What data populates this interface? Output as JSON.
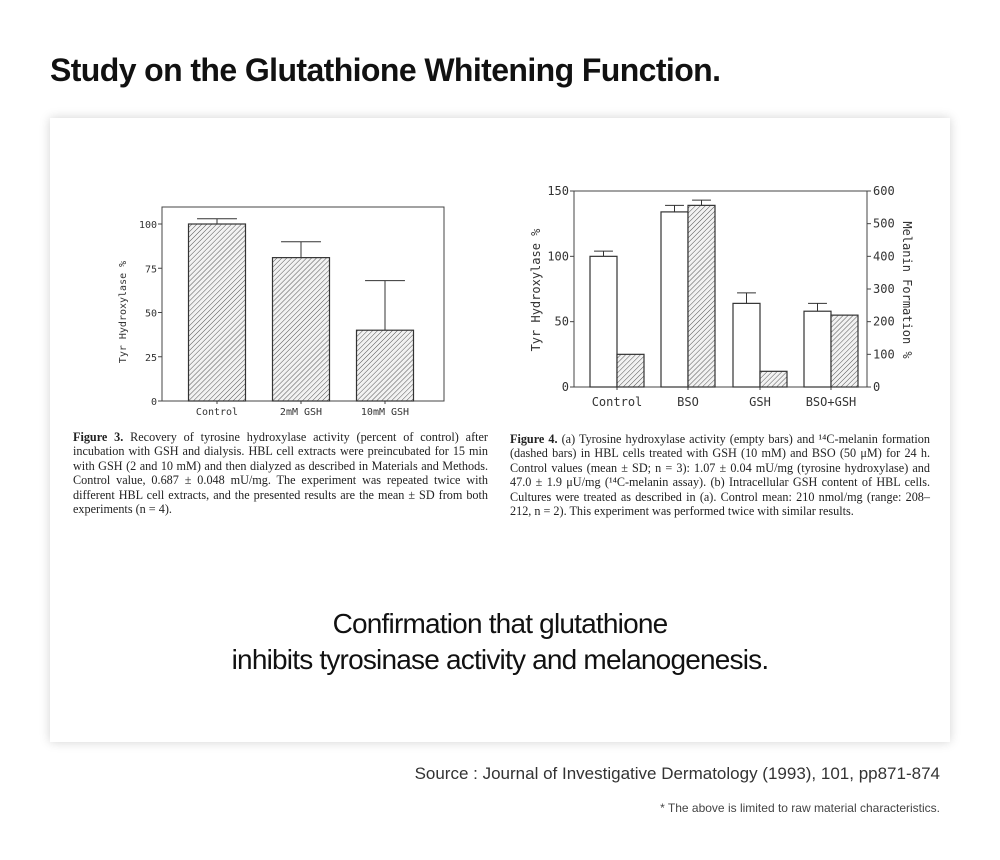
{
  "title": "Study on the Glutathione Whitening Function.",
  "chart_data": [
    {
      "type": "bar",
      "id": "figure-3",
      "categories": [
        "Control",
        "2mM GSH",
        "10mM GSH"
      ],
      "series": [
        {
          "name": "Tyr Hydroxylase %",
          "style": "hatched",
          "values": [
            100,
            81,
            40
          ],
          "error_upper": [
            103,
            90,
            68
          ]
        }
      ],
      "ylabel": "Tyr Hydroxylase %",
      "ylim": [
        0,
        110
      ],
      "yticks": [
        0,
        25,
        50,
        75,
        100
      ],
      "caption": {
        "label": "Figure 3.",
        "text": "Recovery of tyrosine hydroxylase activity (percent of control) after incubation with GSH and dialysis. HBL cell extracts were preincubated for 15 min with GSH (2 and 10 mM) and then dialyzed as described in Materials and Methods. Control value, 0.687 ± 0.048 mU/mg. The experiment was repeated twice with different HBL cell extracts, and the presented results are the mean ± SD from both experiments (n = 4)."
      }
    },
    {
      "type": "bar",
      "id": "figure-4",
      "categories": [
        "Control",
        "BSO",
        "GSH",
        "BSO+GSH"
      ],
      "series": [
        {
          "name": "Tyr Hydroxylase %",
          "style": "empty",
          "axis": "left",
          "values": [
            100,
            134,
            64,
            58
          ],
          "error_upper": [
            104,
            139,
            72,
            64
          ]
        },
        {
          "name": "Melanin Formation %",
          "style": "hatched",
          "axis": "right",
          "values": [
            100,
            556,
            48,
            220
          ],
          "error_upper": [
            null,
            572,
            null,
            null
          ]
        }
      ],
      "ylabel": "Tyr Hydroxylase %",
      "ylabel_right": "Melanin Formation %",
      "ylim": [
        0,
        150
      ],
      "ylim_right": [
        0,
        600
      ],
      "yticks": [
        0,
        50,
        100,
        150
      ],
      "yticks_right": [
        0,
        100,
        200,
        300,
        400,
        500,
        600
      ],
      "caption": {
        "label": "Figure 4.",
        "text": "(a) Tyrosine hydroxylase activity (empty bars) and ¹⁴C-melanin formation (dashed bars) in HBL cells treated with GSH (10 mM) and BSO (50 μM) for 24 h. Control values (mean ± SD; n = 3): 1.07 ± 0.04 mU/mg (tyrosine hydroxylase) and 47.0 ± 1.9 μU/mg (¹⁴C-melanin assay). (b) Intracellular GSH content of HBL cells. Cultures were treated as described in (a). Control mean: 210 nmol/mg (range: 208–212, n = 2). This experiment was performed twice with similar results."
      }
    }
  ],
  "conclusion": {
    "line1": "Confirmation that glutathione",
    "line2": "inhibits tyrosinase activity and melanogenesis."
  },
  "source": "Source : Journal of Investigative Dermatology (1993), 101, pp871-874",
  "note": "* The above is limited to raw material characteristics."
}
